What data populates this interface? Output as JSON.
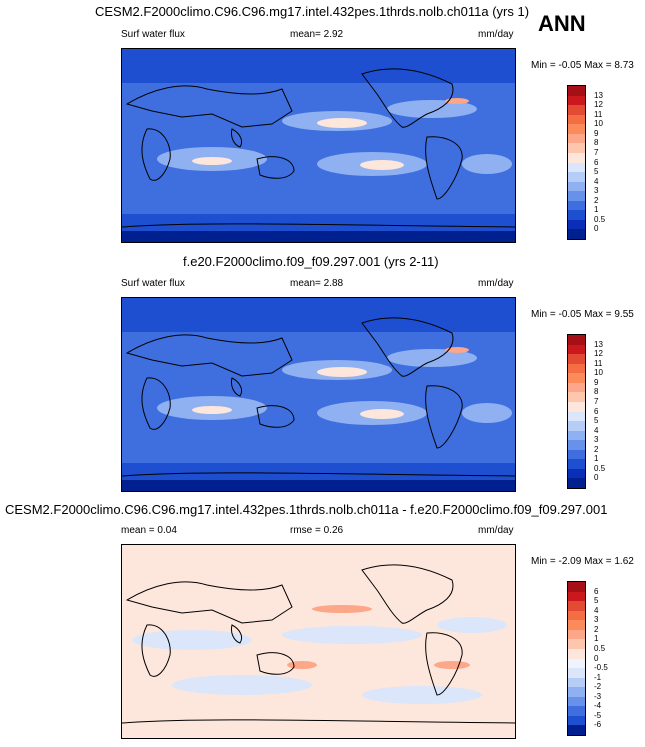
{
  "season_label": "ANN",
  "panels": [
    {
      "title": "CESM2.F2000climo.C96.C96.mg17.intel.432pes.1thrds.nolb.ch011a (yrs 1)",
      "left_label": "Surf water flux",
      "center_label": "mean=  2.92",
      "units": "mm/day",
      "minmax": "Min =  -0.05 Max =   8.73",
      "colorbar_labels": [
        "13",
        "12",
        "11",
        "10",
        "9",
        "8",
        "7",
        "6",
        "5",
        "4",
        "3",
        "2",
        "1",
        "0.5",
        "0"
      ],
      "colorbar_colors": [
        "#a50f15",
        "#cb181d",
        "#e34a33",
        "#f46d43",
        "#fb8b5b",
        "#fca68a",
        "#fdc6ad",
        "#fde7dc",
        "#dbe6fa",
        "#b5cdf7",
        "#8fb1f2",
        "#6891ea",
        "#3f6fdf",
        "#1f4fd1",
        "#0a2eb8",
        "#00208f"
      ]
    },
    {
      "title": "f.e20.F2000climo.f09_f09.297.001 (yrs 2-11)",
      "left_label": "Surf water flux",
      "center_label": "mean=  2.88",
      "units": "mm/day",
      "minmax": "Min =  -0.05 Max =   9.55",
      "colorbar_labels": [
        "13",
        "12",
        "11",
        "10",
        "9",
        "8",
        "7",
        "6",
        "5",
        "4",
        "3",
        "2",
        "1",
        "0.5",
        "0"
      ],
      "colorbar_colors": [
        "#a50f15",
        "#cb181d",
        "#e34a33",
        "#f46d43",
        "#fb8b5b",
        "#fca68a",
        "#fdc6ad",
        "#fde7dc",
        "#dbe6fa",
        "#b5cdf7",
        "#8fb1f2",
        "#6891ea",
        "#3f6fdf",
        "#1f4fd1",
        "#0a2eb8",
        "#00208f"
      ]
    },
    {
      "title": "CESM2.F2000climo.C96.C96.mg17.intel.432pes.1thrds.nolb.ch011a - f.e20.F2000climo.f09_f09.297.001",
      "left_label": "mean =  0.04",
      "center_label": "rmse =  0.26",
      "units": "mm/day",
      "minmax": "Min =  -2.09 Max =   1.62",
      "colorbar_labels": [
        "6",
        "5",
        "4",
        "3",
        "2",
        "1",
        "0.5",
        "0",
        "-0.5",
        "-1",
        "-2",
        "-3",
        "-4",
        "-5",
        "-6"
      ],
      "colorbar_colors": [
        "#a50f15",
        "#cb181d",
        "#e34a33",
        "#f46d43",
        "#fb8b5b",
        "#fca68a",
        "#fdc6ad",
        "#fde7dc",
        "#eef3fc",
        "#dbe6fa",
        "#b5cdf7",
        "#8fb1f2",
        "#6891ea",
        "#3f6fdf",
        "#1f4fd1",
        "#00208f"
      ]
    }
  ]
}
